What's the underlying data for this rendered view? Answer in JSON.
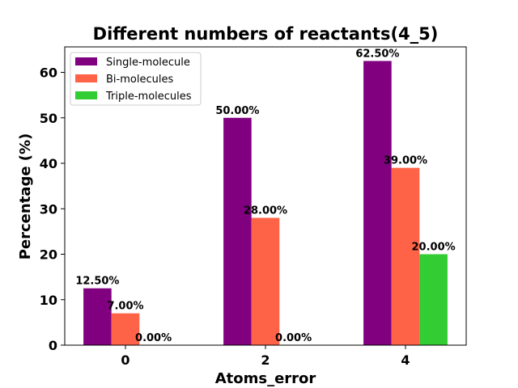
{
  "chart_data": {
    "type": "bar",
    "title": "Different numbers of reactants(4_5)",
    "xlabel": "Atoms_error",
    "ylabel": "Percentage (%)",
    "categories": [
      "0",
      "2",
      "4"
    ],
    "ylim": [
      0,
      65.6
    ],
    "yticks": [
      "0",
      "10",
      "20",
      "30",
      "40",
      "50",
      "60"
    ],
    "grid": false,
    "legend_position": "top-left",
    "series": [
      {
        "name": "Single-molecule",
        "color": "#800080",
        "values": [
          12.5,
          50.0,
          62.5
        ],
        "labels": [
          "12.50%",
          "50.00%",
          "62.50%"
        ]
      },
      {
        "name": "Bi-molecules",
        "color": "#FF6347",
        "values": [
          7.0,
          28.0,
          39.0
        ],
        "labels": [
          "7.00%",
          "28.00%",
          "39.00%"
        ]
      },
      {
        "name": "Triple-molecules",
        "color": "#32CD32",
        "values": [
          0.0,
          0.0,
          20.0
        ],
        "labels": [
          "0.00%",
          "0.00%",
          "20.00%"
        ]
      }
    ]
  }
}
